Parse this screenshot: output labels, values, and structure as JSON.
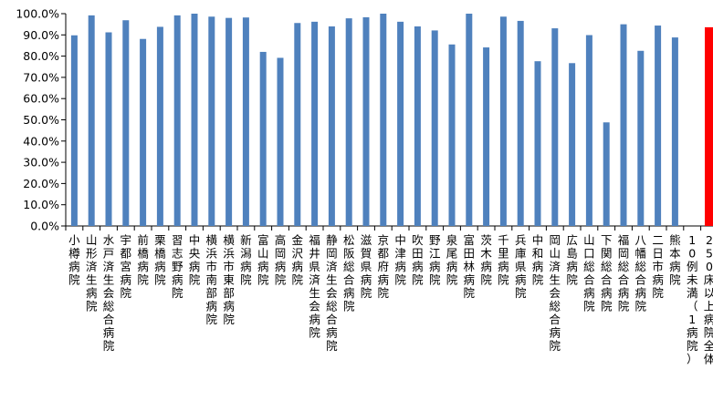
{
  "chart_data": {
    "type": "bar",
    "title": "",
    "xlabel": "",
    "ylabel": "",
    "ylim": [
      0,
      100
    ],
    "y_tick_step": 10,
    "y_tick_labels": [
      "0.0%",
      "10.0%",
      "20.0%",
      "30.0%",
      "40.0%",
      "50.0%",
      "60.0%",
      "70.0%",
      "80.0%",
      "90.0%",
      "100.0%"
    ],
    "grid": false,
    "legend": "none",
    "colors": {
      "bar": "#4F81BD",
      "highlight": "#FF0000",
      "axis": "#000000"
    },
    "categories": [
      "小樽病院",
      "山形済生病院",
      "水戸済生会総合病院",
      "宇都宮病院",
      "前橋病院",
      "栗橋病院",
      "習志野病院",
      "中央病院",
      "横浜市南部病院",
      "横浜市東部病院",
      "新潟病院",
      "富山病院",
      "高岡病院",
      "金沢病院",
      "福井県済生会病院",
      "静岡済生会総合病院",
      "松阪総合病院",
      "滋賀県病院",
      "京都府病院",
      "中津病院",
      "吹田病院",
      "野江病院",
      "泉尾病院",
      "富田林病院",
      "茨木病院",
      "千里病院",
      "兵庫県病院",
      "中和病院",
      "岡山済生会総合病院",
      "広島病院",
      "山口総合病院",
      "下関総合病院",
      "福岡総合病院",
      "八幡総合病院",
      "二日市病院",
      "熊本病院",
      "10例未満（1病院）",
      "250床以上病院全体"
    ],
    "values": [
      89.8,
      99.2,
      91.2,
      96.9,
      88.1,
      93.8,
      99.2,
      100.0,
      98.6,
      98.0,
      98.2,
      82.0,
      79.2,
      95.6,
      96.2,
      94.0,
      97.8,
      98.3,
      100.0,
      96.2,
      94.0,
      92.1,
      85.5,
      100.0,
      84.1,
      98.6,
      96.6,
      77.6,
      93.1,
      76.7,
      89.9,
      48.8,
      95.0,
      82.5,
      94.4,
      88.8,
      null,
      93.6
    ],
    "highlight_index": 37
  }
}
